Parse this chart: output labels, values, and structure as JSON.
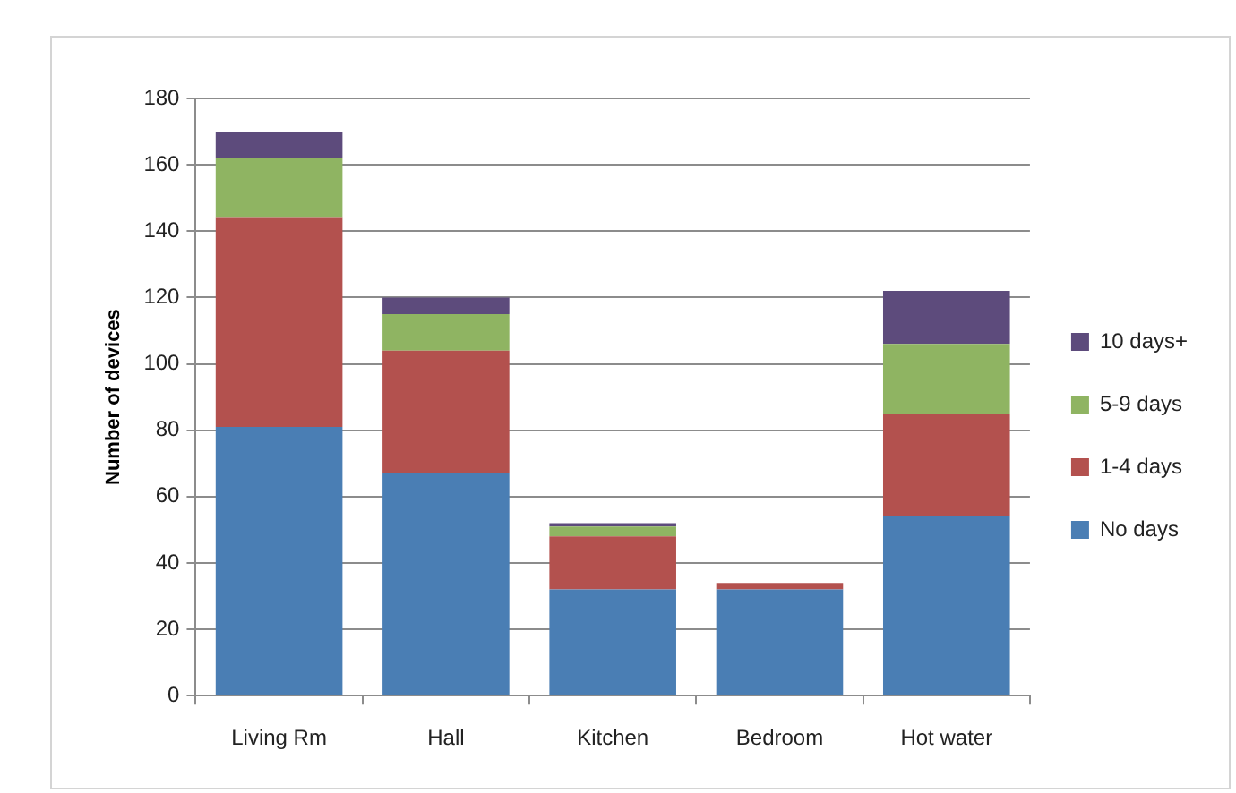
{
  "chart_data": {
    "type": "bar",
    "stacked": true,
    "categories": [
      "Living Rm",
      "Hall",
      "Kitchen",
      "Bedroom",
      "Hot water"
    ],
    "ylabel": "Number of devices",
    "series": [
      {
        "name": "No days",
        "color": "#4a7eb4",
        "values": [
          81,
          67,
          32,
          32,
          54
        ]
      },
      {
        "name": "1-4 days",
        "color": "#b3514e",
        "values": [
          63,
          37,
          16,
          2,
          31
        ]
      },
      {
        "name": "5-9 days",
        "color": "#8fb462",
        "values": [
          18,
          11,
          3,
          0,
          21
        ]
      },
      {
        "name": "10 days+",
        "color": "#5d4b7c",
        "values": [
          8,
          5,
          1,
          0,
          16
        ]
      }
    ],
    "ylim": [
      0,
      180
    ],
    "yticks": [
      0,
      20,
      40,
      60,
      80,
      100,
      120,
      140,
      160,
      180
    ],
    "grid": "y",
    "legend": "right"
  }
}
